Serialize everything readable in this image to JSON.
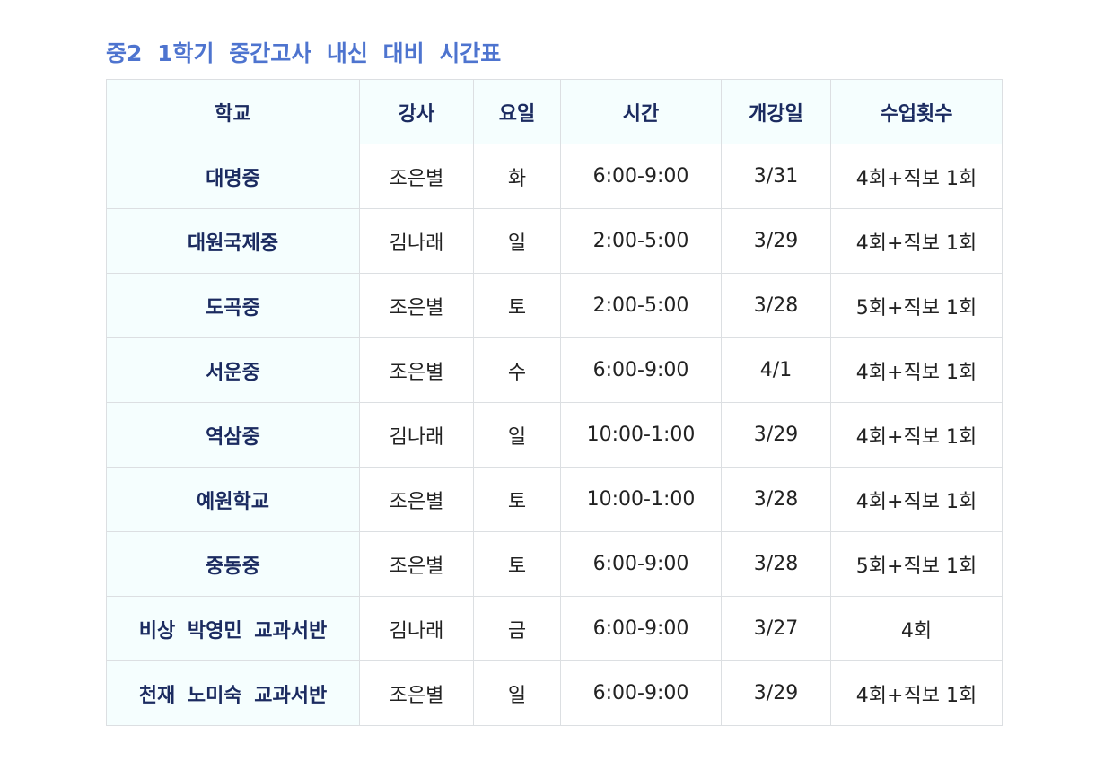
{
  "title": "중2 1학기 중간고사 내신 대비 시간표",
  "headers": [
    "학교",
    "강사",
    "요일",
    "시간",
    "개강일",
    "수업횟수"
  ],
  "rows": [
    [
      "대명중",
      "조은별",
      "화",
      "6:00-9:00",
      "3/31",
      "4회+직보 1회"
    ],
    [
      "대원국제중",
      "김나래",
      "일",
      "2:00-5:00",
      "3/29",
      "4회+직보 1회"
    ],
    [
      "도곡중",
      "조은별",
      "토",
      "2:00-5:00",
      "3/28",
      "5회+직보 1회"
    ],
    [
      "서운중",
      "조은별",
      "수",
      "6:00-9:00",
      "4/1",
      "4회+직보 1회"
    ],
    [
      "역삼중",
      "김나래",
      "일",
      "10:00-1:00",
      "3/29",
      "4회+직보 1회"
    ],
    [
      "예원학교",
      "조은별",
      "토",
      "10:00-1:00",
      "3/28",
      "4회+직보 1회"
    ],
    [
      "중동중",
      "조은별",
      "토",
      "6:00-9:00",
      "3/28",
      "5회+직보 1회"
    ],
    [
      "비상 박영민 교과서반",
      "김나래",
      "금",
      "6:00-9:00",
      "3/27",
      "4회"
    ],
    [
      "천재 노미숙 교과서반",
      "조은별",
      "일",
      "6:00-9:00",
      "3/29",
      "4회+직보 1회"
    ]
  ]
}
